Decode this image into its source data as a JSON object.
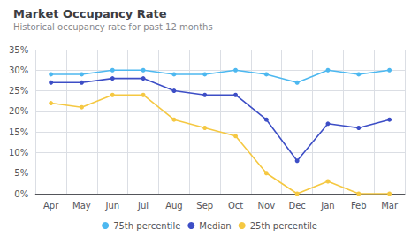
{
  "chart_data": {
    "type": "line",
    "title": "Market Occupancy Rate",
    "subtitle": "Historical occupancy rate for past 12 months",
    "categories": [
      "Apr",
      "May",
      "Jun",
      "Jul",
      "Aug",
      "Sep",
      "Oct",
      "Nov",
      "Dec",
      "Jan",
      "Feb",
      "Mar"
    ],
    "series": [
      {
        "name": "75th percentile",
        "color": "#4db8f0",
        "values": [
          29,
          29,
          30,
          30,
          29,
          29,
          30,
          29,
          27,
          30,
          29,
          30
        ]
      },
      {
        "name": "Median",
        "color": "#3d4ec6",
        "values": [
          27,
          27,
          28,
          28,
          25,
          24,
          24,
          18,
          8,
          17,
          16,
          18
        ]
      },
      {
        "name": "25th percentile",
        "color": "#f5c842",
        "values": [
          22,
          21,
          24,
          24,
          18,
          16,
          14,
          5,
          0,
          3,
          0,
          0
        ]
      }
    ],
    "ylim": [
      0,
      35
    ],
    "yticks": [
      {
        "value": 0,
        "label": "0%"
      },
      {
        "value": 5,
        "label": "5%"
      },
      {
        "value": 10,
        "label": "10%"
      },
      {
        "value": 15,
        "label": "15%"
      },
      {
        "value": 20,
        "label": "20%"
      },
      {
        "value": 25,
        "label": "25%"
      },
      {
        "value": 30,
        "label": "30%"
      },
      {
        "value": 35,
        "label": "35%"
      }
    ],
    "grid": true,
    "legend": "bottom",
    "marker": "circle"
  }
}
